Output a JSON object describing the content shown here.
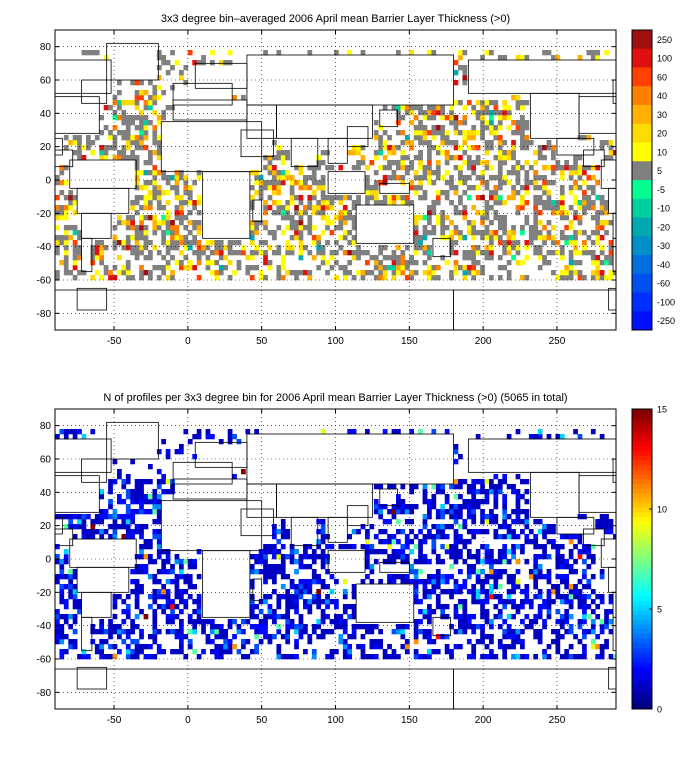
{
  "chart_data": [
    {
      "type": "heatmap",
      "title": "3x3 degree bin–averaged 2006 April mean Barrier Layer Thickness (>0)",
      "xlabel": "",
      "ylabel": "",
      "x_ticks": [
        -50,
        0,
        50,
        100,
        150,
        200,
        250
      ],
      "y_ticks": [
        80,
        60,
        40,
        20,
        0,
        -20,
        -40,
        -60,
        -80
      ],
      "xlim": [
        -90,
        290
      ],
      "ylim": [
        -90,
        90
      ],
      "grid": true,
      "bin_size_deg": 3,
      "colorbar": {
        "ticks": [
          "250",
          "100",
          "60",
          "40",
          "30",
          "20",
          "10",
          "5",
          "-5",
          "-10",
          "-20",
          "-30",
          "-40",
          "-60",
          "-100",
          "-250"
        ],
        "colors": [
          "#a01010",
          "#e01010",
          "#ff4000",
          "#ff8000",
          "#ffb000",
          "#ffdc00",
          "#ffff00",
          "#808080",
          "#00ff90",
          "#00d0a0",
          "#00a8b0",
          "#0090c8",
          "#0070e0",
          "#0050f0",
          "#0030ff",
          "#0010ff"
        ]
      },
      "color_shares": [
        {
          "color": "#808080",
          "share": 0.58
        },
        {
          "color": "#ffff00",
          "share": 0.14
        },
        {
          "color": "#ffdc00",
          "share": 0.08
        },
        {
          "color": "#ffb000",
          "share": 0.06
        },
        {
          "color": "#ff8000",
          "share": 0.04
        },
        {
          "color": "#ff4000",
          "share": 0.03
        },
        {
          "color": "#e01010",
          "share": 0.03
        },
        {
          "color": "#a01010",
          "share": 0.01
        },
        {
          "color": "#00ff90",
          "share": 0.01
        },
        {
          "color": "#00d0a0",
          "share": 0.01
        },
        {
          "color": "#00a8b0",
          "share": 0.01
        }
      ]
    },
    {
      "type": "heatmap",
      "title": "N of profiles per 3x3 degree bin for 2006 April mean Barrier Layer Thickness (>0) (5065 in total)",
      "xlabel": "",
      "ylabel": "",
      "x_ticks": [
        -50,
        0,
        50,
        100,
        150,
        200,
        250
      ],
      "y_ticks": [
        80,
        60,
        40,
        20,
        0,
        -20,
        -40,
        -60,
        -80
      ],
      "xlim": [
        -90,
        290
      ],
      "ylim": [
        -90,
        90
      ],
      "grid": true,
      "bin_size_deg": 3,
      "total_profiles": 5065,
      "colorbar": {
        "ticks": [
          15,
          10,
          5,
          0
        ],
        "range": [
          0,
          15
        ],
        "colormap": "jet"
      },
      "value_shares": [
        {
          "value": 1,
          "share": 0.6
        },
        {
          "value": 2,
          "share": 0.22
        },
        {
          "value": 3,
          "share": 0.08
        },
        {
          "value": 4,
          "share": 0.04
        },
        {
          "value": 5,
          "share": 0.025
        },
        {
          "value": 7,
          "share": 0.015
        },
        {
          "value": 9,
          "share": 0.008
        },
        {
          "value": 11,
          "share": 0.006
        },
        {
          "value": 13,
          "share": 0.004
        },
        {
          "value": 15,
          "share": 0.002
        }
      ]
    }
  ]
}
